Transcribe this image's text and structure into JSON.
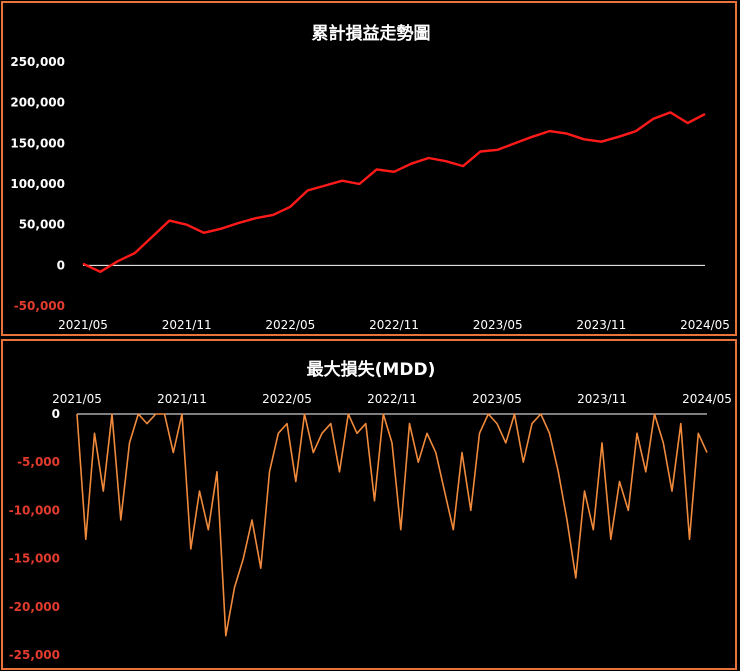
{
  "colors": {
    "frame": "#e8743b",
    "pnl_line": "#ff1a1a",
    "mdd_line": "#f08a3c",
    "negative_tick": "#e33b2e"
  },
  "chart_data": [
    {
      "type": "line",
      "title": "累計損益走勢圖",
      "xlabel": "",
      "ylabel": "",
      "x_ticks": [
        "2021/05",
        "2021/11",
        "2022/05",
        "2022/11",
        "2023/05",
        "2023/11",
        "2024/05"
      ],
      "y_ticks": [
        "250,000",
        "200,000",
        "150,000",
        "100,000",
        "50,000",
        "0",
        "-50,000"
      ],
      "ylim": [
        -50000,
        250000
      ],
      "xlim": [
        "2021/05",
        "2024/05"
      ],
      "grid": false,
      "zero_line": true,
      "series": [
        {
          "x": [
            "2021/05",
            "2021/06",
            "2021/07",
            "2021/08",
            "2021/09",
            "2021/10",
            "2021/11",
            "2021/12",
            "2022/01",
            "2022/02",
            "2022/03",
            "2022/04",
            "2022/05",
            "2022/06",
            "2022/07",
            "2022/08",
            "2022/09",
            "2022/10",
            "2022/11",
            "2022/12",
            "2023/01",
            "2023/02",
            "2023/03",
            "2023/04",
            "2023/05",
            "2023/06",
            "2023/07",
            "2023/08",
            "2023/09",
            "2023/10",
            "2023/11",
            "2023/12",
            "2024/01",
            "2024/02",
            "2024/03",
            "2024/04",
            "2024/05"
          ],
          "y": [
            2000,
            -8000,
            5000,
            15000,
            35000,
            55000,
            50000,
            40000,
            45000,
            52000,
            58000,
            62000,
            72000,
            92000,
            98000,
            104000,
            100000,
            118000,
            115000,
            125000,
            132000,
            128000,
            122000,
            140000,
            142000,
            150000,
            158000,
            165000,
            162000,
            155000,
            152000,
            158000,
            165000,
            180000,
            188000,
            175000,
            186000
          ]
        }
      ]
    },
    {
      "type": "line",
      "title": "最大損失(MDD)",
      "xlabel": "",
      "ylabel": "",
      "x_ticks": [
        "2021/05",
        "2021/11",
        "2022/05",
        "2022/11",
        "2023/05",
        "2023/11",
        "2024/05"
      ],
      "y_ticks": [
        "0",
        "-5,000",
        "-10,000",
        "-15,000",
        "-20,000",
        "-25,000"
      ],
      "ylim": [
        -25000,
        0
      ],
      "xlim": [
        "2021/05",
        "2024/05"
      ],
      "grid": false,
      "series": [
        {
          "x": [
            "2021/05",
            "2021/05b",
            "2021/06",
            "2021/06b",
            "2021/07",
            "2021/07b",
            "2021/08",
            "2021/08b",
            "2021/09",
            "2021/09b",
            "2021/10",
            "2021/10b",
            "2021/11",
            "2021/11b",
            "2021/12",
            "2021/12b",
            "2022/01",
            "2022/01b",
            "2022/02",
            "2022/02b",
            "2022/03",
            "2022/03b",
            "2022/04",
            "2022/04b",
            "2022/05",
            "2022/05b",
            "2022/06",
            "2022/06b",
            "2022/07",
            "2022/07b",
            "2022/08",
            "2022/08b",
            "2022/09",
            "2022/09b",
            "2022/10",
            "2022/10b",
            "2022/11",
            "2022/11b",
            "2022/12",
            "2022/12b",
            "2023/01",
            "2023/01b",
            "2023/02",
            "2023/02b",
            "2023/03",
            "2023/03b",
            "2023/04",
            "2023/04b",
            "2023/05",
            "2023/05b",
            "2023/06",
            "2023/06b",
            "2023/07",
            "2023/07b",
            "2023/08",
            "2023/08b",
            "2023/09",
            "2023/09b",
            "2023/10",
            "2023/10b",
            "2023/11",
            "2023/11b",
            "2023/12",
            "2023/12b",
            "2024/01",
            "2024/01b",
            "2024/02",
            "2024/02b",
            "2024/03",
            "2024/03b",
            "2024/04",
            "2024/04b",
            "2024/05"
          ],
          "y": [
            0,
            -13000,
            -2000,
            -8000,
            0,
            -11000,
            -3000,
            0,
            -1000,
            0,
            0,
            -4000,
            0,
            -14000,
            -8000,
            -12000,
            -6000,
            -23000,
            -18000,
            -15000,
            -11000,
            -16000,
            -6000,
            -2000,
            -1000,
            -7000,
            0,
            -4000,
            -2000,
            -1000,
            -6000,
            0,
            -2000,
            -1000,
            -9000,
            0,
            -3000,
            -12000,
            -1000,
            -5000,
            -2000,
            -4000,
            -8000,
            -12000,
            -4000,
            -10000,
            -2000,
            0,
            -1000,
            -3000,
            0,
            -5000,
            -1000,
            0,
            -2000,
            -6000,
            -11000,
            -17000,
            -8000,
            -12000,
            -3000,
            -13000,
            -7000,
            -10000,
            -2000,
            -6000,
            0,
            -3000,
            -8000,
            -1000,
            -13000,
            -2000,
            -4000
          ]
        }
      ]
    }
  ]
}
